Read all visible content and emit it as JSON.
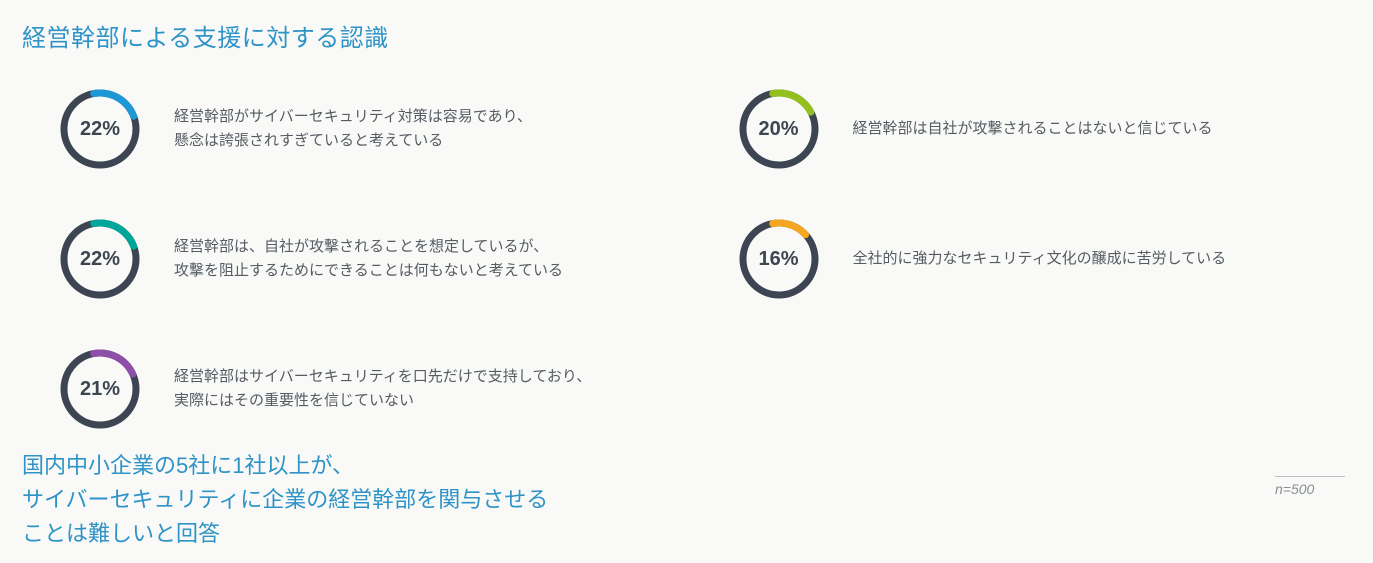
{
  "title": "経営幹部による支援に対する認識",
  "ring": {
    "track_color": "#3c4551",
    "track_width": 7,
    "arc_width": 7,
    "radius": 36,
    "svg_size": 92,
    "start_angle_deg": -10
  },
  "items": [
    {
      "value": 22,
      "label": "22%",
      "arc_color": "#1b98d5",
      "desc": "経営幹部がサイバーセキュリティ対策は容易であり、\n懸念は誇張されすぎていると考えている"
    },
    {
      "value": 20,
      "label": "20%",
      "arc_color": "#93c01f",
      "desc": "経営幹部は自社が攻撃されることはないと信じている"
    },
    {
      "value": 22,
      "label": "22%",
      "arc_color": "#00a699",
      "desc": "経営幹部は、自社が攻撃されることを想定しているが、\n攻撃を阻止するためにできることは何もないと考えている"
    },
    {
      "value": 16,
      "label": "16%",
      "arc_color": "#f5a623",
      "desc": "全社的に強力なセキュリティ文化の醸成に苦労している"
    },
    {
      "value": 21,
      "label": "21%",
      "arc_color": "#8e4fa8",
      "desc": "経営幹部はサイバーセキュリティを口先だけで支持しており、\n実際にはその重要性を信じていない"
    }
  ],
  "summary": "国内中小企業の5社に1社以上が、\nサイバーセキュリティに企業の経営幹部を関与させる\nことは難しいと回答",
  "footnote": "n=500",
  "text_colors": {
    "title": "#2e93c7",
    "desc": "#555c63",
    "pct": "#3c4550",
    "summary": "#2e93c7",
    "footnote": "#888f95"
  },
  "background_color": "#f9f9f7"
}
